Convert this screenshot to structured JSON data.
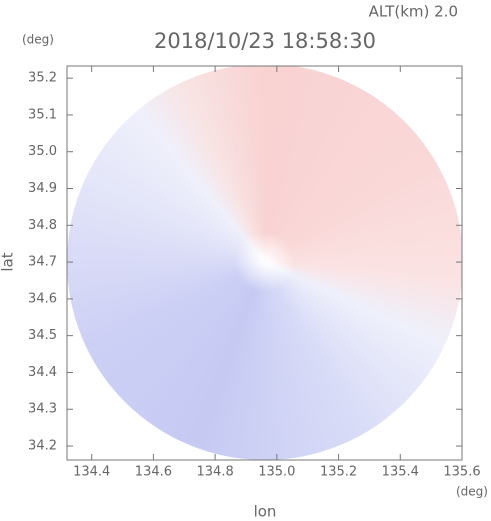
{
  "chart_data": {
    "type": "map",
    "title": "2018/10/23 18:58:30",
    "annotation": "ALT(km) 2.0",
    "x_label": "lon",
    "y_label": "lat",
    "x_unit": "(deg)",
    "y_unit": "(deg)",
    "xlim": [
      134.32,
      135.6
    ],
    "ylim": [
      34.162,
      35.233
    ],
    "xticks": [
      134.4,
      134.6,
      134.8,
      {
        "value": 135,
        "label": "135.0"
      },
      135.2,
      135.4,
      135.6
    ],
    "yticks": [
      34.2,
      34.3,
      34.4,
      34.5,
      34.6,
      34.7,
      34.8,
      34.9,
      {
        "value": 35,
        "label": "35.0"
      },
      35.1,
      35.2
    ]
  }
}
